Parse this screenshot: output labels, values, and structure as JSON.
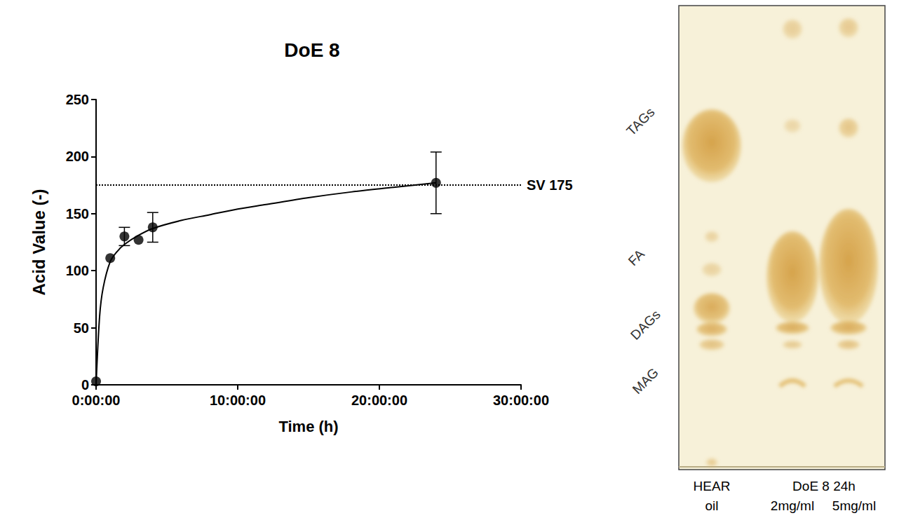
{
  "chart_data": {
    "type": "scatter",
    "title": "DoE 8",
    "x_label": "Time (h)",
    "y_label": "Acid Value (-)",
    "xlim": [
      0,
      30
    ],
    "xticks": [
      {
        "value": 0,
        "label": "0:00:00"
      },
      {
        "value": 10,
        "label": "10:00:00"
      },
      {
        "value": 20,
        "label": "20:00:00"
      },
      {
        "value": 30,
        "label": "30:00:00"
      }
    ],
    "ylim": [
      0,
      250
    ],
    "yticks": [
      0,
      50,
      100,
      150,
      200,
      250
    ],
    "grid": false,
    "x": [
      0,
      1,
      2,
      3,
      4,
      24
    ],
    "values": [
      3,
      111,
      130,
      127,
      138,
      177
    ],
    "error": [
      null,
      null,
      8,
      null,
      13,
      27
    ],
    "color": "#000000",
    "marker": "circle",
    "fit": {
      "type": "line",
      "x": [
        0,
        0.25,
        0.5,
        1,
        1.5,
        2,
        3,
        4,
        6,
        8,
        10,
        12,
        15,
        18,
        21,
        24
      ],
      "values": [
        0,
        60,
        85,
        108,
        117,
        123,
        131,
        137,
        144,
        149,
        154,
        158,
        164,
        169,
        173,
        177
      ],
      "color": "#000000",
      "line_style": "solid"
    },
    "reference_line": {
      "value": 175,
      "label": "SV 175",
      "line_style": "dotted",
      "color": "#000000"
    }
  },
  "tlc_plate": {
    "spot_labels": [
      "TAGs",
      "FA",
      "DAGs",
      "MAG"
    ],
    "lanes": [
      "HEAR oil",
      "DoE 8 24h"
    ],
    "sublanes": [
      "2mg/ml",
      "5mg/ml"
    ]
  }
}
